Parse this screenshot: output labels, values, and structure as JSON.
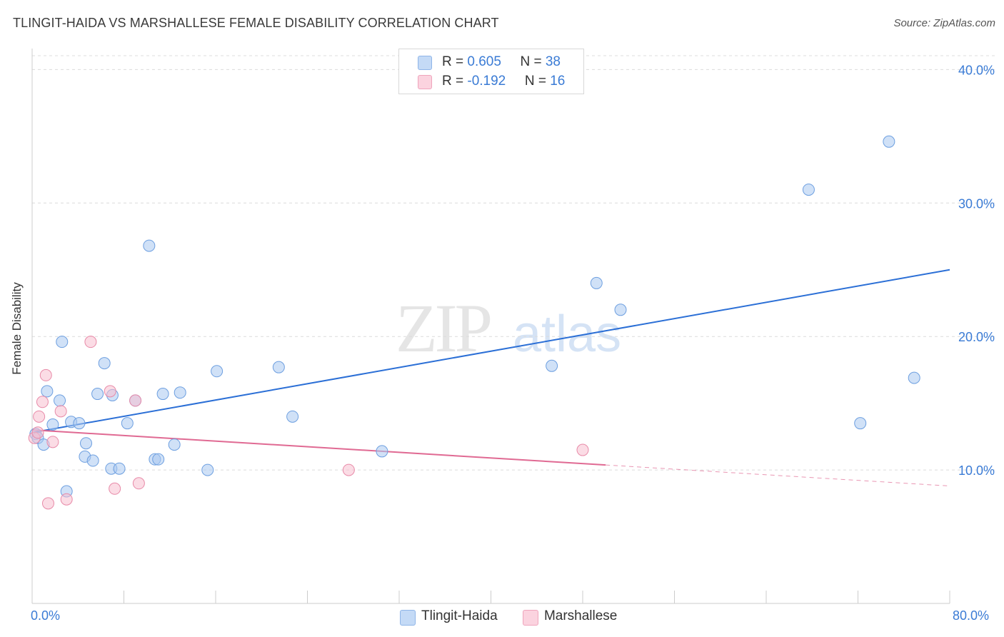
{
  "title": "TLINGIT-HAIDA VS MARSHALLESE FEMALE DISABILITY CORRELATION CHART",
  "source": "Source: ZipAtlas.com",
  "colors": {
    "blue": "#a9c8f0",
    "blue_stroke": "#6d9fe0",
    "blue_line": "#2b6fd6",
    "pink": "#f7bfd0",
    "pink_stroke": "#e88aa8",
    "pink_line": "#e06a93",
    "axis_text": "#3a7bd5"
  },
  "legend": {
    "row1": {
      "r_label": "R = ",
      "r_value": "0.605",
      "n_label": "N = ",
      "n_value": "38"
    },
    "row2": {
      "r_label": "R = ",
      "r_value": "-0.192",
      "n_label": "N = ",
      "n_value": "16"
    }
  },
  "bottom_legend": {
    "series1": "Tlingit-Haida",
    "series2": "Marshallese"
  },
  "x_tick_labels": {
    "min": "0.0%",
    "max": "80.0%"
  },
  "chart_data": {
    "type": "scatter",
    "title": "TLINGIT-HAIDA VS MARSHALLESE FEMALE DISABILITY CORRELATION CHART",
    "xlabel": "",
    "ylabel": "Female Disability",
    "xlim": [
      0,
      80
    ],
    "ylim": [
      0,
      42
    ],
    "y_ticks": [
      10,
      20,
      30,
      40
    ],
    "y_tick_labels": [
      "10.0%",
      "20.0%",
      "30.0%",
      "40.0%"
    ],
    "grid": true,
    "legend_position": "top-center",
    "series": [
      {
        "name": "Tlingit-Haida",
        "color": "#a9c8f0",
        "points": [
          [
            0.3,
            12.7
          ],
          [
            0.5,
            12.4
          ],
          [
            1.0,
            11.9
          ],
          [
            1.3,
            15.9
          ],
          [
            1.8,
            13.4
          ],
          [
            2.4,
            15.2
          ],
          [
            2.6,
            19.6
          ],
          [
            3.0,
            8.4
          ],
          [
            3.4,
            13.6
          ],
          [
            4.1,
            13.5
          ],
          [
            4.6,
            11.0
          ],
          [
            4.7,
            12.0
          ],
          [
            5.3,
            10.7
          ],
          [
            5.7,
            15.7
          ],
          [
            6.3,
            18.0
          ],
          [
            6.9,
            10.1
          ],
          [
            7.0,
            15.6
          ],
          [
            7.6,
            10.1
          ],
          [
            8.3,
            13.5
          ],
          [
            9.0,
            15.2
          ],
          [
            10.2,
            26.8
          ],
          [
            10.7,
            10.8
          ],
          [
            11.0,
            10.8
          ],
          [
            11.4,
            15.7
          ],
          [
            12.4,
            11.9
          ],
          [
            12.9,
            15.8
          ],
          [
            15.3,
            10.0
          ],
          [
            16.1,
            17.4
          ],
          [
            21.5,
            17.7
          ],
          [
            22.7,
            14.0
          ],
          [
            30.5,
            11.4
          ],
          [
            45.3,
            17.8
          ],
          [
            49.2,
            24.0
          ],
          [
            51.3,
            22.0
          ],
          [
            67.7,
            31.0
          ],
          [
            72.2,
            13.5
          ],
          [
            74.7,
            34.6
          ],
          [
            76.9,
            16.9
          ]
        ]
      },
      {
        "name": "Marshallese",
        "color": "#f7bfd0",
        "points": [
          [
            0.2,
            12.4
          ],
          [
            0.5,
            12.8
          ],
          [
            0.6,
            14.0
          ],
          [
            0.9,
            15.1
          ],
          [
            1.2,
            17.1
          ],
          [
            1.4,
            7.5
          ],
          [
            1.8,
            12.1
          ],
          [
            2.5,
            14.4
          ],
          [
            3.0,
            7.8
          ],
          [
            5.1,
            19.6
          ],
          [
            6.8,
            15.9
          ],
          [
            7.2,
            8.6
          ],
          [
            9.0,
            15.2
          ],
          [
            9.3,
            9.0
          ],
          [
            27.6,
            10.0
          ],
          [
            48.0,
            11.5
          ]
        ]
      }
    ],
    "trend_lines": [
      {
        "series": "Tlingit-Haida",
        "x": [
          0,
          80
        ],
        "y": [
          12.8,
          25.0
        ],
        "dashed_from": null
      },
      {
        "series": "Marshallese",
        "x": [
          0,
          80
        ],
        "y": [
          13.0,
          8.8
        ],
        "dashed_from": 50
      }
    ]
  }
}
